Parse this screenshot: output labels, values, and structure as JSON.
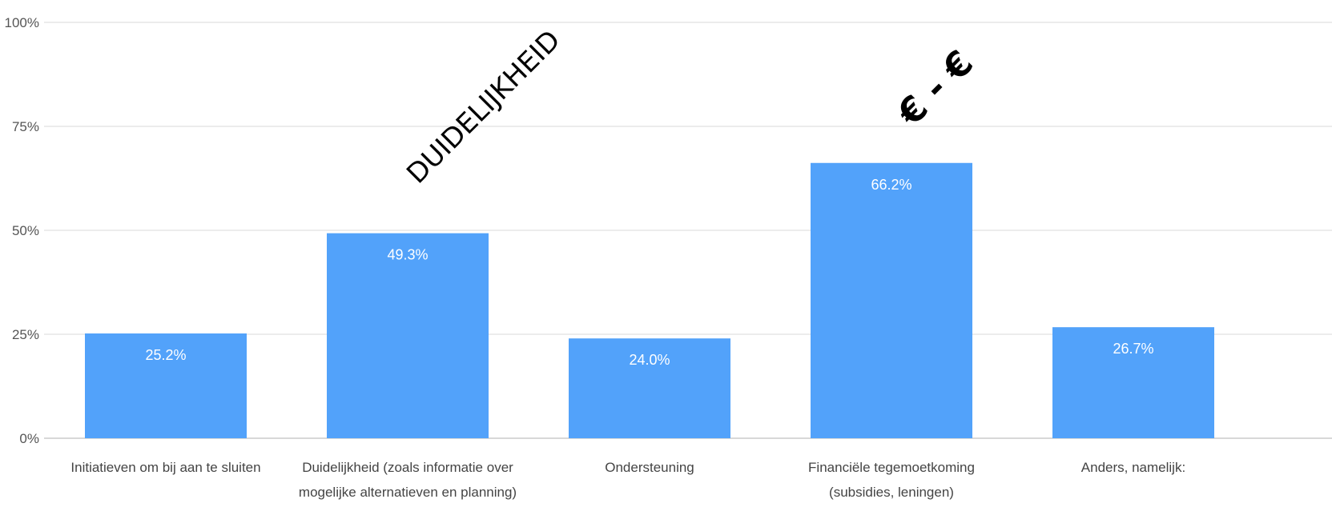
{
  "chart_data": {
    "type": "bar",
    "categories": [
      [
        "Initiatieven om bij aan te sluiten"
      ],
      [
        "Duidelijkheid (zoals informatie over",
        "mogelijke alternatieven en planning)"
      ],
      [
        "Ondersteuning"
      ],
      [
        "Financiële tegemoetkoming",
        "(subsidies, leningen)"
      ],
      [
        "Anders, namelijk:"
      ]
    ],
    "values": [
      25.2,
      49.3,
      24.0,
      66.2,
      26.7
    ],
    "data_labels": [
      "25.2%",
      "49.3%",
      "24.0%",
      "66.2%",
      "26.7%"
    ],
    "ylim": [
      0,
      100
    ],
    "yticks": [
      0,
      25,
      50,
      75,
      100
    ],
    "ytick_labels": [
      "0%",
      "25%",
      "50%",
      "75%",
      "100%"
    ],
    "grid": true,
    "bar_color": "#52a2fa",
    "grid_color": "#e6e6e6",
    "title": "",
    "xlabel": "",
    "ylabel": "",
    "annotations": [
      {
        "text": "DUIDELIJKHEID",
        "category_index": 1
      },
      {
        "text": "€ - €",
        "category_index": 3
      }
    ]
  }
}
